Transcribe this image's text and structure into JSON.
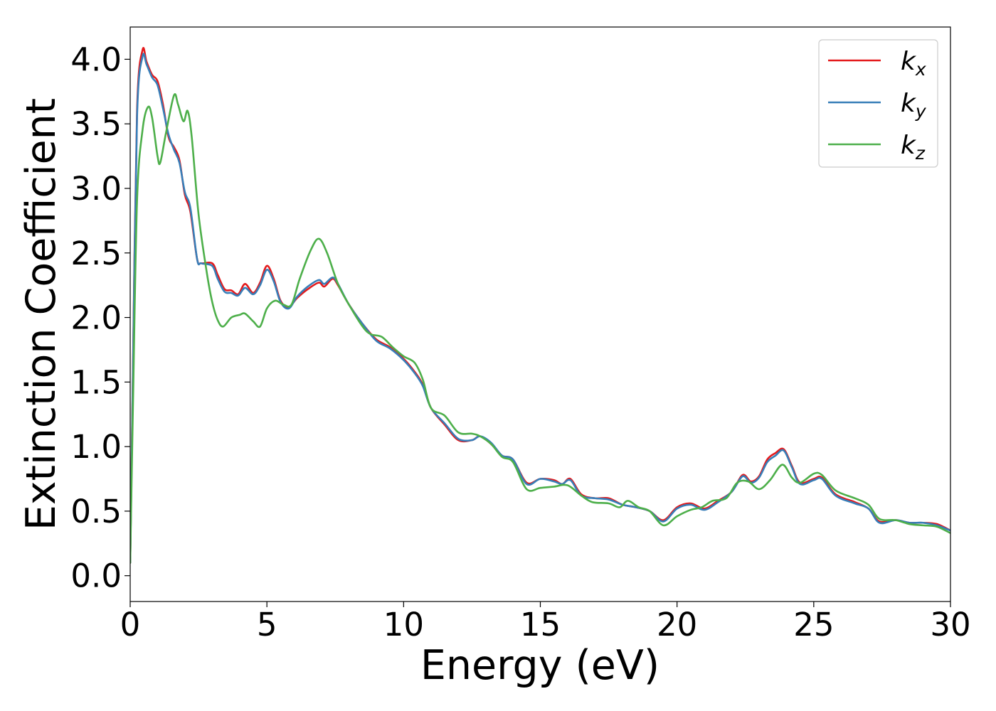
{
  "chart_data": {
    "type": "line",
    "title": "",
    "xlabel": "Energy (eV)",
    "ylabel": "Extinction Coefficient",
    "xlim": [
      0,
      30
    ],
    "ylim": [
      -0.2,
      4.25
    ],
    "x_ticks": [
      0,
      5,
      10,
      15,
      20,
      25,
      30
    ],
    "x_tick_labels": [
      "0",
      "5",
      "10",
      "15",
      "20",
      "25",
      "30"
    ],
    "y_ticks": [
      0.0,
      0.5,
      1.0,
      1.5,
      2.0,
      2.5,
      3.0,
      3.5,
      4.0
    ],
    "y_tick_labels": [
      "0.0",
      "0.5",
      "1.0",
      "1.5",
      "2.0",
      "2.5",
      "3.0",
      "3.5",
      "4.0"
    ],
    "grid": false,
    "legend_position": "top-right",
    "series": [
      {
        "name": "kx",
        "legend_base": "k",
        "legend_sub": "x",
        "color": "#e41a1c",
        "points": [
          [
            0,
            0.1
          ],
          [
            0.1,
            1.6
          ],
          [
            0.25,
            3.6
          ],
          [
            0.45,
            4.07
          ],
          [
            0.6,
            3.98
          ],
          [
            0.8,
            3.88
          ],
          [
            1.0,
            3.83
          ],
          [
            1.2,
            3.65
          ],
          [
            1.4,
            3.4
          ],
          [
            1.6,
            3.32
          ],
          [
            1.8,
            3.22
          ],
          [
            2.0,
            2.95
          ],
          [
            2.2,
            2.82
          ],
          [
            2.45,
            2.45
          ],
          [
            2.6,
            2.42
          ],
          [
            3.0,
            2.42
          ],
          [
            3.2,
            2.33
          ],
          [
            3.45,
            2.22
          ],
          [
            3.7,
            2.21
          ],
          [
            3.95,
            2.18
          ],
          [
            4.2,
            2.26
          ],
          [
            4.5,
            2.19
          ],
          [
            4.75,
            2.27
          ],
          [
            5.0,
            2.4
          ],
          [
            5.25,
            2.3
          ],
          [
            5.5,
            2.13
          ],
          [
            5.8,
            2.08
          ],
          [
            6.1,
            2.15
          ],
          [
            6.5,
            2.22
          ],
          [
            6.9,
            2.27
          ],
          [
            7.1,
            2.24
          ],
          [
            7.4,
            2.3
          ],
          [
            7.6,
            2.25
          ],
          [
            8.0,
            2.1
          ],
          [
            8.5,
            1.95
          ],
          [
            9.0,
            1.83
          ],
          [
            9.5,
            1.77
          ],
          [
            10.0,
            1.68
          ],
          [
            10.4,
            1.58
          ],
          [
            10.7,
            1.48
          ],
          [
            11.0,
            1.3
          ],
          [
            11.5,
            1.17
          ],
          [
            12.0,
            1.05
          ],
          [
            12.5,
            1.05
          ],
          [
            12.8,
            1.08
          ],
          [
            13.2,
            1.02
          ],
          [
            13.6,
            0.93
          ],
          [
            14.0,
            0.9
          ],
          [
            14.5,
            0.72
          ],
          [
            15.0,
            0.75
          ],
          [
            15.5,
            0.74
          ],
          [
            15.8,
            0.71
          ],
          [
            16.1,
            0.75
          ],
          [
            16.5,
            0.63
          ],
          [
            17.0,
            0.6
          ],
          [
            17.5,
            0.6
          ],
          [
            18.0,
            0.55
          ],
          [
            18.5,
            0.53
          ],
          [
            19.0,
            0.5
          ],
          [
            19.5,
            0.43
          ],
          [
            20.0,
            0.53
          ],
          [
            20.5,
            0.56
          ],
          [
            21.0,
            0.52
          ],
          [
            21.5,
            0.58
          ],
          [
            22.0,
            0.65
          ],
          [
            22.4,
            0.78
          ],
          [
            22.7,
            0.73
          ],
          [
            23.0,
            0.77
          ],
          [
            23.3,
            0.9
          ],
          [
            23.6,
            0.95
          ],
          [
            23.9,
            0.98
          ],
          [
            24.2,
            0.85
          ],
          [
            24.5,
            0.72
          ],
          [
            25.0,
            0.75
          ],
          [
            25.3,
            0.76
          ],
          [
            25.8,
            0.63
          ],
          [
            26.5,
            0.57
          ],
          [
            27.0,
            0.52
          ],
          [
            27.4,
            0.42
          ],
          [
            28.0,
            0.43
          ],
          [
            28.5,
            0.41
          ],
          [
            29.0,
            0.41
          ],
          [
            29.5,
            0.4
          ],
          [
            30.0,
            0.35
          ]
        ]
      },
      {
        "name": "ky",
        "legend_base": "k",
        "legend_sub": "y",
        "color": "#377eb8",
        "points": [
          [
            0,
            0.1
          ],
          [
            0.1,
            1.55
          ],
          [
            0.25,
            3.55
          ],
          [
            0.45,
            4.02
          ],
          [
            0.6,
            3.96
          ],
          [
            0.8,
            3.86
          ],
          [
            1.0,
            3.8
          ],
          [
            1.2,
            3.62
          ],
          [
            1.4,
            3.42
          ],
          [
            1.6,
            3.3
          ],
          [
            1.8,
            3.2
          ],
          [
            2.0,
            2.97
          ],
          [
            2.2,
            2.85
          ],
          [
            2.45,
            2.45
          ],
          [
            2.6,
            2.42
          ],
          [
            3.0,
            2.4
          ],
          [
            3.2,
            2.3
          ],
          [
            3.45,
            2.2
          ],
          [
            3.7,
            2.19
          ],
          [
            3.95,
            2.17
          ],
          [
            4.2,
            2.23
          ],
          [
            4.5,
            2.18
          ],
          [
            4.75,
            2.25
          ],
          [
            5.0,
            2.37
          ],
          [
            5.25,
            2.28
          ],
          [
            5.5,
            2.12
          ],
          [
            5.8,
            2.07
          ],
          [
            6.1,
            2.16
          ],
          [
            6.5,
            2.24
          ],
          [
            6.9,
            2.29
          ],
          [
            7.1,
            2.26
          ],
          [
            7.4,
            2.31
          ],
          [
            7.6,
            2.26
          ],
          [
            8.0,
            2.1
          ],
          [
            8.5,
            1.95
          ],
          [
            9.0,
            1.82
          ],
          [
            9.5,
            1.76
          ],
          [
            10.0,
            1.67
          ],
          [
            10.4,
            1.57
          ],
          [
            10.7,
            1.47
          ],
          [
            11.0,
            1.3
          ],
          [
            11.5,
            1.18
          ],
          [
            12.0,
            1.06
          ],
          [
            12.5,
            1.05
          ],
          [
            12.8,
            1.08
          ],
          [
            13.2,
            1.03
          ],
          [
            13.6,
            0.93
          ],
          [
            14.0,
            0.9
          ],
          [
            14.5,
            0.71
          ],
          [
            15.0,
            0.75
          ],
          [
            15.5,
            0.73
          ],
          [
            15.8,
            0.71
          ],
          [
            16.1,
            0.74
          ],
          [
            16.5,
            0.62
          ],
          [
            17.0,
            0.6
          ],
          [
            17.5,
            0.59
          ],
          [
            18.0,
            0.55
          ],
          [
            18.5,
            0.53
          ],
          [
            19.0,
            0.5
          ],
          [
            19.5,
            0.42
          ],
          [
            20.0,
            0.52
          ],
          [
            20.5,
            0.55
          ],
          [
            21.0,
            0.51
          ],
          [
            21.5,
            0.57
          ],
          [
            22.0,
            0.65
          ],
          [
            22.4,
            0.77
          ],
          [
            22.7,
            0.72
          ],
          [
            23.0,
            0.76
          ],
          [
            23.3,
            0.88
          ],
          [
            23.6,
            0.93
          ],
          [
            23.9,
            0.97
          ],
          [
            24.2,
            0.84
          ],
          [
            24.5,
            0.71
          ],
          [
            25.0,
            0.74
          ],
          [
            25.3,
            0.75
          ],
          [
            25.8,
            0.62
          ],
          [
            26.5,
            0.56
          ],
          [
            27.0,
            0.52
          ],
          [
            27.4,
            0.41
          ],
          [
            28.0,
            0.43
          ],
          [
            28.5,
            0.41
          ],
          [
            29.0,
            0.41
          ],
          [
            29.5,
            0.39
          ],
          [
            30.0,
            0.35
          ]
        ]
      },
      {
        "name": "kz",
        "legend_base": "k",
        "legend_sub": "z",
        "color": "#4daf4a",
        "points": [
          [
            0,
            0.1
          ],
          [
            0.1,
            1.3
          ],
          [
            0.25,
            2.9
          ],
          [
            0.45,
            3.45
          ],
          [
            0.65,
            3.63
          ],
          [
            0.8,
            3.55
          ],
          [
            1.0,
            3.25
          ],
          [
            1.1,
            3.2
          ],
          [
            1.3,
            3.42
          ],
          [
            1.6,
            3.72
          ],
          [
            1.75,
            3.65
          ],
          [
            1.95,
            3.52
          ],
          [
            2.1,
            3.6
          ],
          [
            2.25,
            3.4
          ],
          [
            2.5,
            2.8
          ],
          [
            2.8,
            2.35
          ],
          [
            3.0,
            2.12
          ],
          [
            3.2,
            1.98
          ],
          [
            3.4,
            1.93
          ],
          [
            3.7,
            2.0
          ],
          [
            4.0,
            2.02
          ],
          [
            4.2,
            2.03
          ],
          [
            4.5,
            1.97
          ],
          [
            4.75,
            1.93
          ],
          [
            5.0,
            2.07
          ],
          [
            5.3,
            2.13
          ],
          [
            5.6,
            2.1
          ],
          [
            5.9,
            2.1
          ],
          [
            6.2,
            2.3
          ],
          [
            6.6,
            2.52
          ],
          [
            6.9,
            2.61
          ],
          [
            7.2,
            2.5
          ],
          [
            7.6,
            2.26
          ],
          [
            8.0,
            2.1
          ],
          [
            8.5,
            1.93
          ],
          [
            8.8,
            1.87
          ],
          [
            9.2,
            1.85
          ],
          [
            9.6,
            1.77
          ],
          [
            10.0,
            1.7
          ],
          [
            10.4,
            1.65
          ],
          [
            10.7,
            1.52
          ],
          [
            11.0,
            1.3
          ],
          [
            11.5,
            1.24
          ],
          [
            12.0,
            1.11
          ],
          [
            12.5,
            1.1
          ],
          [
            12.8,
            1.08
          ],
          [
            13.2,
            1.02
          ],
          [
            13.6,
            0.92
          ],
          [
            14.0,
            0.88
          ],
          [
            14.5,
            0.67
          ],
          [
            15.0,
            0.68
          ],
          [
            15.5,
            0.69
          ],
          [
            16.0,
            0.7
          ],
          [
            16.5,
            0.62
          ],
          [
            16.9,
            0.57
          ],
          [
            17.5,
            0.56
          ],
          [
            17.9,
            0.53
          ],
          [
            18.2,
            0.58
          ],
          [
            18.6,
            0.53
          ],
          [
            19.0,
            0.5
          ],
          [
            19.5,
            0.39
          ],
          [
            20.0,
            0.46
          ],
          [
            20.5,
            0.51
          ],
          [
            20.9,
            0.53
          ],
          [
            21.3,
            0.58
          ],
          [
            21.8,
            0.6
          ],
          [
            22.2,
            0.72
          ],
          [
            22.6,
            0.73
          ],
          [
            23.0,
            0.67
          ],
          [
            23.4,
            0.74
          ],
          [
            23.85,
            0.86
          ],
          [
            24.2,
            0.76
          ],
          [
            24.5,
            0.72
          ],
          [
            25.0,
            0.79
          ],
          [
            25.3,
            0.78
          ],
          [
            25.8,
            0.66
          ],
          [
            26.5,
            0.6
          ],
          [
            27.0,
            0.55
          ],
          [
            27.4,
            0.44
          ],
          [
            28.0,
            0.43
          ],
          [
            28.5,
            0.4
          ],
          [
            29.0,
            0.39
          ],
          [
            29.5,
            0.38
          ],
          [
            30.0,
            0.33
          ]
        ]
      }
    ]
  }
}
